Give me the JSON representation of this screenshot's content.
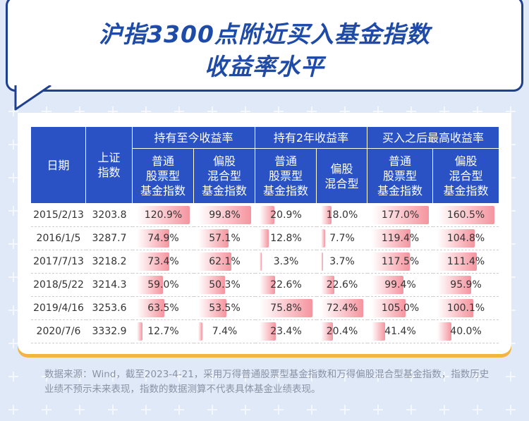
{
  "title": {
    "line1": "沪指3300点附近买入基金指数",
    "line2": "收益率水平"
  },
  "colors": {
    "header_bg": "#2a52c4",
    "title": "#1e4aa8",
    "bar": "#ee3c50",
    "card_accent": "#f2b640"
  },
  "chart_data": {
    "type": "table",
    "header_groups": [
      {
        "label": "日期",
        "span": 1
      },
      {
        "label": "上证指数",
        "span": 1
      },
      {
        "label": "持有至今收益率",
        "span": 2
      },
      {
        "label": "持有2年收益率",
        "span": 2
      },
      {
        "label": "买入之后最高收益率",
        "span": 2
      }
    ],
    "columns": [
      {
        "key": "date",
        "label": "日期"
      },
      {
        "key": "index",
        "label": "上证\n指数"
      },
      {
        "key": "held_stock",
        "label": "普通\n股票型\n基金指数"
      },
      {
        "key": "held_mixed",
        "label": "偏股\n混合型\n基金指数"
      },
      {
        "key": "two_stock",
        "label": "普通\n股票型\n基金指数"
      },
      {
        "key": "two_mixed",
        "label": "偏股\n混合型"
      },
      {
        "key": "max_stock",
        "label": "普通\n股票型\n基金指数"
      },
      {
        "key": "max_mixed",
        "label": "偏股\n混合型\n基金指数"
      }
    ],
    "rows": [
      {
        "date": "2015/2/13",
        "index": "3203.8",
        "held_stock": "120.9%",
        "held_mixed": "99.8%",
        "two_stock": "20.9%",
        "two_mixed": "18.0%",
        "max_stock": "177.0%",
        "max_mixed": "160.5%"
      },
      {
        "date": "2016/1/5",
        "index": "3287.7",
        "held_stock": "74.9%",
        "held_mixed": "57.1%",
        "two_stock": "12.8%",
        "two_mixed": "7.7%",
        "max_stock": "119.4%",
        "max_mixed": "104.8%"
      },
      {
        "date": "2017/7/13",
        "index": "3218.2",
        "held_stock": "73.4%",
        "held_mixed": "62.1%",
        "two_stock": "3.3%",
        "two_mixed": "3.7%",
        "max_stock": "117.5%",
        "max_mixed": "111.4%"
      },
      {
        "date": "2018/5/22",
        "index": "3214.3",
        "held_stock": "59.0%",
        "held_mixed": "50.3%",
        "two_stock": "22.6%",
        "two_mixed": "22.6%",
        "max_stock": "99.4%",
        "max_mixed": "95.9%"
      },
      {
        "date": "2019/4/16",
        "index": "3253.6",
        "held_stock": "63.5%",
        "held_mixed": "53.5%",
        "two_stock": "75.8%",
        "two_mixed": "72.4%",
        "max_stock": "105.0%",
        "max_mixed": "100.1%"
      },
      {
        "date": "2020/7/6",
        "index": "3332.9",
        "held_stock": "12.7%",
        "held_mixed": "7.4%",
        "two_stock": "23.4%",
        "two_mixed": "20.4%",
        "max_stock": "41.4%",
        "max_mixed": "40.0%"
      }
    ]
  },
  "source_note": "数据来源：Wind，截至2023-4-21，采用万得普通股票型基金指数和万得偏股混合型基金指数，指数历史业绩不预示未来表现，指数的数据测算不代表具体基金业绩表现。"
}
